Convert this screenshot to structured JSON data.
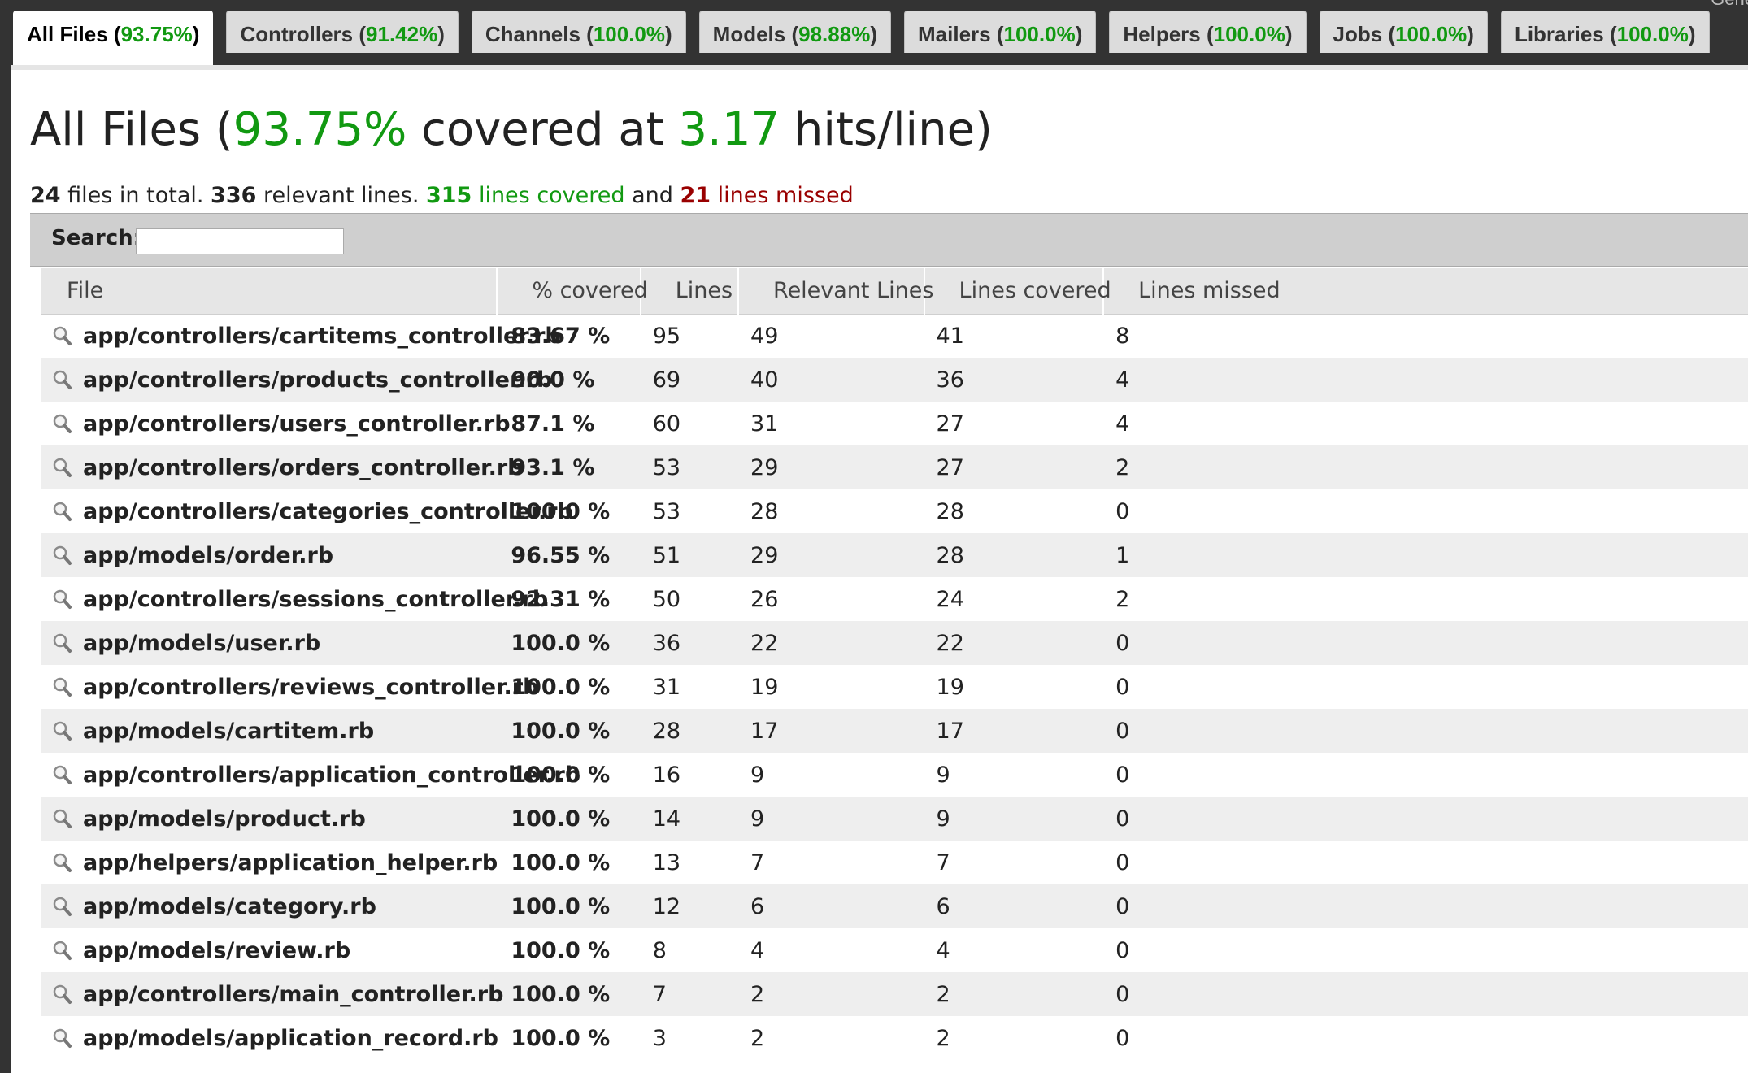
{
  "corner_text": "Gene",
  "tabs": [
    {
      "label": "All Files",
      "pct": "93.75%",
      "active": true
    },
    {
      "label": "Controllers",
      "pct": "91.42%",
      "active": false
    },
    {
      "label": "Channels",
      "pct": "100.0%",
      "active": false
    },
    {
      "label": "Models",
      "pct": "98.88%",
      "active": false
    },
    {
      "label": "Mailers",
      "pct": "100.0%",
      "active": false
    },
    {
      "label": "Helpers",
      "pct": "100.0%",
      "active": false
    },
    {
      "label": "Jobs",
      "pct": "100.0%",
      "active": false
    },
    {
      "label": "Libraries",
      "pct": "100.0%",
      "active": false
    }
  ],
  "heading": {
    "prefix": "All Files (",
    "covered_pct": "93.75%",
    "middle": " covered at ",
    "hits": "3.17",
    "suffix": " hits/line)"
  },
  "summary": {
    "files_total": "24",
    "files_text": " files in total. ",
    "relevant_lines": "336",
    "relevant_text": " relevant lines. ",
    "covered_lines": "315",
    "covered_text": " lines covered",
    "and_text": " and ",
    "missed_lines": "21",
    "missed_text": " lines missed"
  },
  "search": {
    "label": "Search:",
    "value": "",
    "placeholder": ""
  },
  "columns": [
    "File",
    "% covered",
    "Lines",
    "Relevant Lines",
    "Lines covered",
    "Lines missed"
  ],
  "rows": [
    {
      "file": "app/controllers/cartitems_controller.rb",
      "pct": "83.67 %",
      "level": "yellow",
      "lines": "95",
      "relevant": "49",
      "covered": "41",
      "missed": "8"
    },
    {
      "file": "app/controllers/products_controller.rb",
      "pct": "90.0 %",
      "level": "yellow",
      "lines": "69",
      "relevant": "40",
      "covered": "36",
      "missed": "4"
    },
    {
      "file": "app/controllers/users_controller.rb",
      "pct": "87.1 %",
      "level": "yellow",
      "lines": "60",
      "relevant": "31",
      "covered": "27",
      "missed": "4"
    },
    {
      "file": "app/controllers/orders_controller.rb",
      "pct": "93.1 %",
      "level": "green",
      "lines": "53",
      "relevant": "29",
      "covered": "27",
      "missed": "2"
    },
    {
      "file": "app/controllers/categories_controller.rb",
      "pct": "100.0 %",
      "level": "green",
      "lines": "53",
      "relevant": "28",
      "covered": "28",
      "missed": "0"
    },
    {
      "file": "app/models/order.rb",
      "pct": "96.55 %",
      "level": "green",
      "lines": "51",
      "relevant": "29",
      "covered": "28",
      "missed": "1"
    },
    {
      "file": "app/controllers/sessions_controller.rb",
      "pct": "92.31 %",
      "level": "green",
      "lines": "50",
      "relevant": "26",
      "covered": "24",
      "missed": "2"
    },
    {
      "file": "app/models/user.rb",
      "pct": "100.0 %",
      "level": "green",
      "lines": "36",
      "relevant": "22",
      "covered": "22",
      "missed": "0"
    },
    {
      "file": "app/controllers/reviews_controller.rb",
      "pct": "100.0 %",
      "level": "green",
      "lines": "31",
      "relevant": "19",
      "covered": "19",
      "missed": "0"
    },
    {
      "file": "app/models/cartitem.rb",
      "pct": "100.0 %",
      "level": "green",
      "lines": "28",
      "relevant": "17",
      "covered": "17",
      "missed": "0"
    },
    {
      "file": "app/controllers/application_controller.rb",
      "pct": "100.0 %",
      "level": "green",
      "lines": "16",
      "relevant": "9",
      "covered": "9",
      "missed": "0"
    },
    {
      "file": "app/models/product.rb",
      "pct": "100.0 %",
      "level": "green",
      "lines": "14",
      "relevant": "9",
      "covered": "9",
      "missed": "0"
    },
    {
      "file": "app/helpers/application_helper.rb",
      "pct": "100.0 %",
      "level": "green",
      "lines": "13",
      "relevant": "7",
      "covered": "7",
      "missed": "0"
    },
    {
      "file": "app/models/category.rb",
      "pct": "100.0 %",
      "level": "green",
      "lines": "12",
      "relevant": "6",
      "covered": "6",
      "missed": "0"
    },
    {
      "file": "app/models/review.rb",
      "pct": "100.0 %",
      "level": "green",
      "lines": "8",
      "relevant": "4",
      "covered": "4",
      "missed": "0"
    },
    {
      "file": "app/controllers/main_controller.rb",
      "pct": "100.0 %",
      "level": "green",
      "lines": "7",
      "relevant": "2",
      "covered": "2",
      "missed": "0"
    },
    {
      "file": "app/models/application_record.rb",
      "pct": "100.0 %",
      "level": "green",
      "lines": "3",
      "relevant": "2",
      "covered": "2",
      "missed": "0"
    }
  ],
  "colors": {
    "green": "#119911",
    "yellow": "#ddaa22",
    "red": "#990000"
  }
}
